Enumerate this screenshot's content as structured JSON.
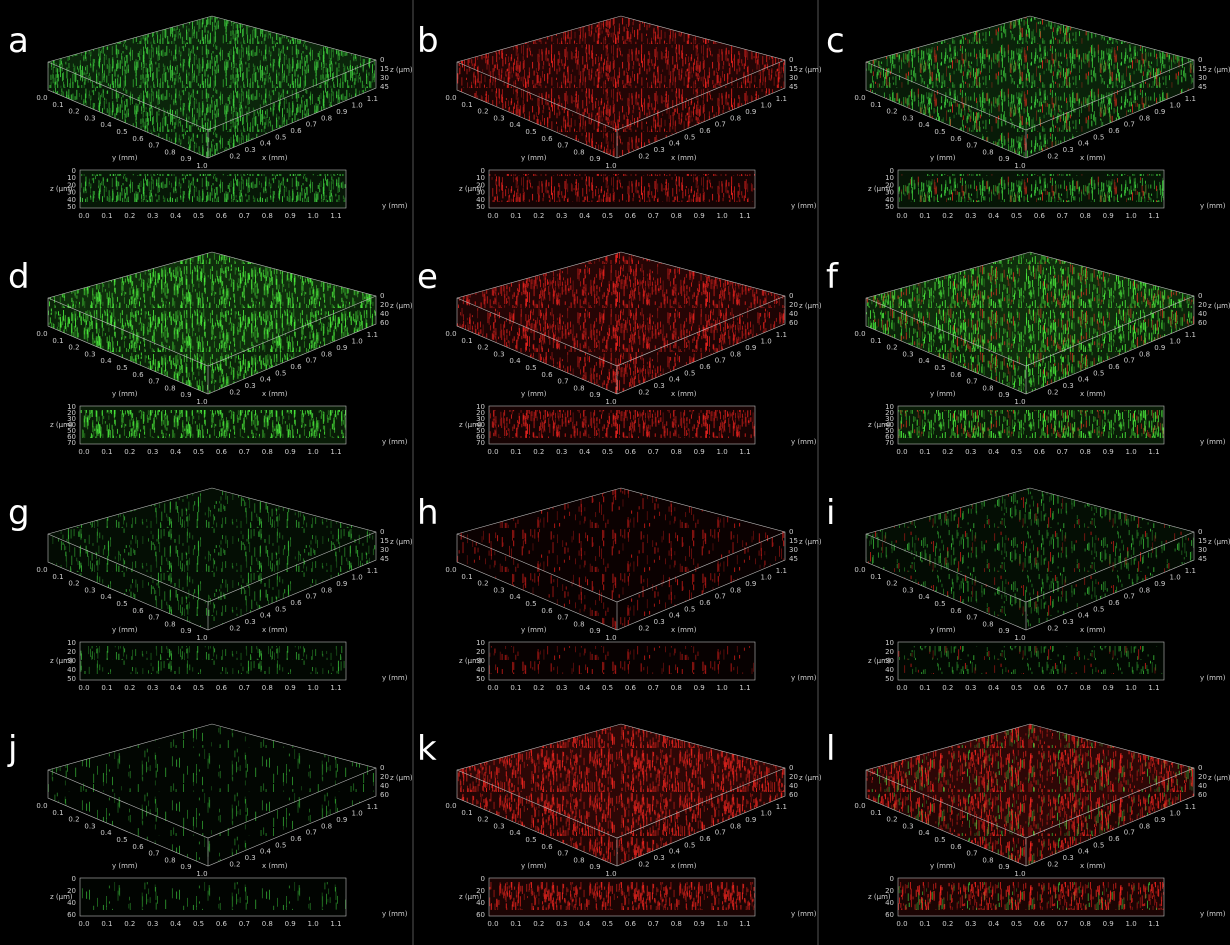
{
  "panels": [
    {
      "label": "a",
      "colors": [
        "#3ccf3c"
      ],
      "z_ticks": [
        "0",
        "15",
        "30",
        "45"
      ],
      "side_z_ticks": [
        "0",
        "10",
        "20",
        "30",
        "40",
        "50"
      ]
    },
    {
      "label": "b",
      "colors": [
        "#e3201c"
      ],
      "z_ticks": [
        "0",
        "15",
        "30",
        "45"
      ],
      "side_z_ticks": [
        "0",
        "10",
        "20",
        "30",
        "40",
        "50"
      ]
    },
    {
      "label": "c",
      "colors": [
        "#3ccf3c",
        "#d82a1c"
      ],
      "z_ticks": [
        "0",
        "15",
        "30",
        "45"
      ],
      "side_z_ticks": [
        "0",
        "10",
        "20",
        "30",
        "40",
        "50"
      ]
    },
    {
      "label": "d",
      "colors": [
        "#49e83a"
      ],
      "z_ticks": [
        "0",
        "20",
        "40",
        "60"
      ],
      "side_z_ticks": [
        "10",
        "20",
        "30",
        "40",
        "50",
        "60",
        "70"
      ]
    },
    {
      "label": "e",
      "colors": [
        "#e3201c"
      ],
      "z_ticks": [
        "0",
        "20",
        "40",
        "60"
      ],
      "side_z_ticks": [
        "10",
        "20",
        "30",
        "40",
        "50",
        "60",
        "70"
      ]
    },
    {
      "label": "f",
      "colors": [
        "#49e83a",
        "#c8301c"
      ],
      "z_ticks": [
        "0",
        "20",
        "40",
        "60"
      ],
      "side_z_ticks": [
        "10",
        "20",
        "30",
        "40",
        "50",
        "60",
        "70"
      ]
    },
    {
      "label": "g",
      "colors": [
        "#35b335"
      ],
      "z_ticks": [
        "0",
        "15",
        "30",
        "45"
      ],
      "side_z_ticks": [
        "10",
        "20",
        "30",
        "40",
        "50"
      ]
    },
    {
      "label": "h",
      "colors": [
        "#d01c18"
      ],
      "z_ticks": [
        "0",
        "15",
        "30",
        "45"
      ],
      "side_z_ticks": [
        "10",
        "20",
        "30",
        "40",
        "50"
      ]
    },
    {
      "label": "i",
      "colors": [
        "#35b335",
        "#d01c18"
      ],
      "z_ticks": [
        "0",
        "15",
        "30",
        "45"
      ],
      "side_z_ticks": [
        "10",
        "20",
        "30",
        "40",
        "50"
      ]
    },
    {
      "label": "j",
      "colors": [
        "#2f9f2f"
      ],
      "z_ticks": [
        "0",
        "20",
        "40",
        "60"
      ],
      "side_z_ticks": [
        "0",
        "20",
        "40",
        "60"
      ]
    },
    {
      "label": "k",
      "colors": [
        "#f0241e"
      ],
      "z_ticks": [
        "0",
        "20",
        "40",
        "60"
      ],
      "side_z_ticks": [
        "0",
        "20",
        "40",
        "60"
      ]
    },
    {
      "label": "l",
      "colors": [
        "#f0241e",
        "#38c038"
      ],
      "z_ticks": [
        "0",
        "20",
        "40",
        "60"
      ],
      "side_z_ticks": [
        "0",
        "20",
        "40",
        "60"
      ]
    }
  ],
  "axis_labels": {
    "x": "x (mm)",
    "y": "y (mm)",
    "z": "z (µm)"
  },
  "y_ticks": [
    "0.0",
    "0.1",
    "0.2",
    "0.3",
    "0.4",
    "0.5",
    "0.6",
    "0.7",
    "0.8",
    "0.9",
    "1.0"
  ],
  "x_ticks": [
    "0.2",
    "0.3",
    "0.4",
    "0.5",
    "0.6",
    "0.7",
    "0.8",
    "0.9",
    "1.0",
    "1.1"
  ],
  "side_x_ticks": [
    "0.0",
    "0.1",
    "0.2",
    "0.3",
    "0.4",
    "0.5",
    "0.6",
    "0.7",
    "0.8",
    "0.9",
    "1.0",
    "1.1"
  ]
}
